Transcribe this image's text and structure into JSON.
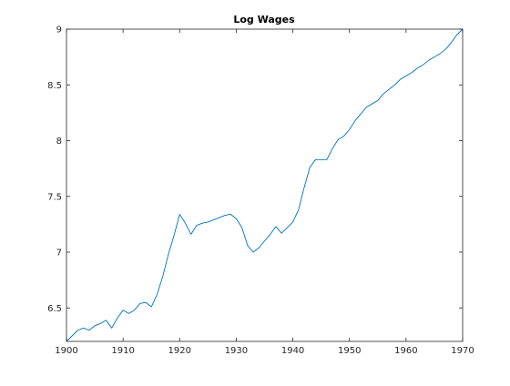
{
  "chart_data": {
    "type": "line",
    "title": "Log Wages",
    "xlabel": "",
    "ylabel": "",
    "xlim": [
      1900,
      1970
    ],
    "ylim": [
      6.2,
      9
    ],
    "x_ticks": [
      1900,
      1910,
      1920,
      1930,
      1940,
      1950,
      1960,
      1970
    ],
    "x_tick_labels": [
      "1900",
      "1910",
      "1920",
      "1930",
      "1940",
      "1950",
      "1960",
      "1970"
    ],
    "y_ticks": [
      6.5,
      7,
      7.5,
      8,
      8.5,
      9
    ],
    "y_tick_labels": [
      "6.5",
      "7",
      "7.5",
      "8",
      "8.5",
      "9"
    ],
    "grid": false,
    "legend": "none",
    "line_color": "#0072BD",
    "series": [
      {
        "x": [
          1900,
          1901,
          1902,
          1903,
          1904,
          1905,
          1906,
          1907,
          1908,
          1909,
          1910,
          1911,
          1912,
          1913,
          1914,
          1915,
          1916,
          1917,
          1918,
          1919,
          1920,
          1921,
          1922,
          1923,
          1924,
          1925,
          1926,
          1927,
          1928,
          1929,
          1930,
          1931,
          1932,
          1933,
          1934,
          1935,
          1936,
          1937,
          1938,
          1939,
          1940,
          1941,
          1942,
          1943,
          1944,
          1945,
          1946,
          1947,
          1948,
          1949,
          1950,
          1951,
          1952,
          1953,
          1954,
          1955,
          1956,
          1957,
          1958,
          1959,
          1960,
          1961,
          1962,
          1963,
          1964,
          1965,
          1966,
          1967,
          1968,
          1969,
          1970
        ],
        "values": [
          6.2,
          6.25,
          6.3,
          6.32,
          6.3,
          6.34,
          6.36,
          6.39,
          6.32,
          6.41,
          6.48,
          6.45,
          6.48,
          6.54,
          6.55,
          6.51,
          6.62,
          6.78,
          6.98,
          7.15,
          7.34,
          7.26,
          7.16,
          7.24,
          7.26,
          7.27,
          7.29,
          7.31,
          7.33,
          7.34,
          7.3,
          7.22,
          7.06,
          7.0,
          7.04,
          7.1,
          7.16,
          7.23,
          7.17,
          7.22,
          7.27,
          7.38,
          7.58,
          7.76,
          7.83,
          7.83,
          7.83,
          7.93,
          8.01,
          8.04,
          8.1,
          8.18,
          8.24,
          8.3,
          8.33,
          8.36,
          8.42,
          8.46,
          8.5,
          8.55,
          8.58,
          8.61,
          8.65,
          8.68,
          8.72,
          8.75,
          8.78,
          8.82,
          8.88,
          8.95,
          9.0
        ]
      }
    ]
  }
}
